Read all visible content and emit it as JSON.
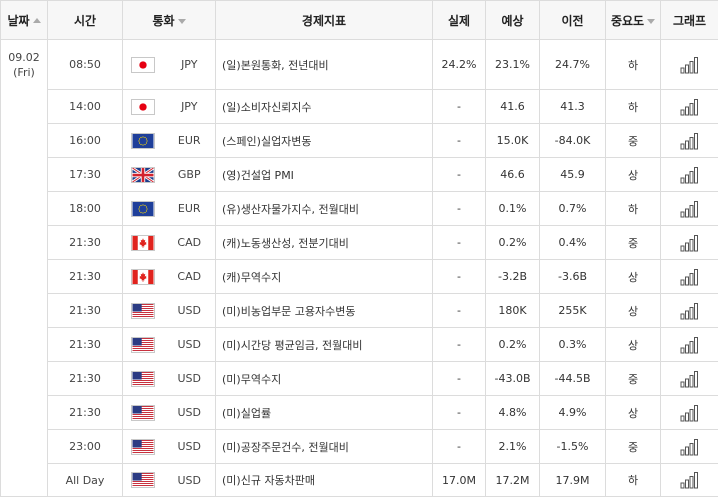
{
  "header": {
    "date": "날짜",
    "time": "시간",
    "currency": "통화",
    "indicator": "경제지표",
    "actual": "실제",
    "forecast": "예상",
    "previous": "이전",
    "importance": "중요도",
    "graph": "그래프"
  },
  "date_group": {
    "date": "09.02",
    "weekday": "(Fri)"
  },
  "rows": [
    {
      "time": "08:50",
      "flag": "jp",
      "currency": "JPY",
      "indicator": "(일)본원통화, 전년대비",
      "actual": "24.2%",
      "forecast": "23.1%",
      "previous": "24.7%",
      "importance": "하"
    },
    {
      "time": "14:00",
      "flag": "jp",
      "currency": "JPY",
      "indicator": "(일)소비자신뢰지수",
      "actual": "-",
      "forecast": "41.6",
      "previous": "41.3",
      "importance": "하"
    },
    {
      "time": "16:00",
      "flag": "eu",
      "currency": "EUR",
      "indicator": "(스페인)실업자변동",
      "actual": "-",
      "forecast": "15.0K",
      "previous": "-84.0K",
      "importance": "중"
    },
    {
      "time": "17:30",
      "flag": "gb",
      "currency": "GBP",
      "indicator": "(영)건설업 PMI",
      "actual": "-",
      "forecast": "46.6",
      "previous": "45.9",
      "importance": "상"
    },
    {
      "time": "18:00",
      "flag": "eu",
      "currency": "EUR",
      "indicator": "(유)생산자물가지수, 전월대비",
      "actual": "-",
      "forecast": "0.1%",
      "previous": "0.7%",
      "importance": "하"
    },
    {
      "time": "21:30",
      "flag": "ca",
      "currency": "CAD",
      "indicator": "(캐)노동생산성, 전분기대비",
      "actual": "-",
      "forecast": "0.2%",
      "previous": "0.4%",
      "importance": "중"
    },
    {
      "time": "21:30",
      "flag": "ca",
      "currency": "CAD",
      "indicator": "(캐)무역수지",
      "actual": "-",
      "forecast": "-3.2B",
      "previous": "-3.6B",
      "importance": "상"
    },
    {
      "time": "21:30",
      "flag": "us",
      "currency": "USD",
      "indicator": "(미)비농업부문 고용자수변동",
      "actual": "-",
      "forecast": "180K",
      "previous": "255K",
      "importance": "상"
    },
    {
      "time": "21:30",
      "flag": "us",
      "currency": "USD",
      "indicator": "(미)시간당 평균임금, 전월대비",
      "actual": "-",
      "forecast": "0.2%",
      "previous": "0.3%",
      "importance": "상"
    },
    {
      "time": "21:30",
      "flag": "us",
      "currency": "USD",
      "indicator": "(미)무역수지",
      "actual": "-",
      "forecast": "-43.0B",
      "previous": "-44.5B",
      "importance": "중"
    },
    {
      "time": "21:30",
      "flag": "us",
      "currency": "USD",
      "indicator": "(미)실업률",
      "actual": "-",
      "forecast": "4.8%",
      "previous": "4.9%",
      "importance": "상"
    },
    {
      "time": "23:00",
      "flag": "us",
      "currency": "USD",
      "indicator": "(미)공장주문건수, 전월대비",
      "actual": "-",
      "forecast": "2.1%",
      "previous": "-1.5%",
      "importance": "중"
    },
    {
      "time": "All Day",
      "flag": "us",
      "currency": "USD",
      "indicator": "(미)신규 자동차판매",
      "actual": "17.0M",
      "forecast": "17.2M",
      "previous": "17.9M",
      "importance": "하"
    }
  ],
  "icons": {
    "graph": "bar-chart-icon",
    "sort": "sort-up-icon",
    "dropdown": "sort-down-icon"
  },
  "colors": {
    "header_bg": "#f7f7f7",
    "border": "#dcdcdc",
    "graph_stroke": "#555555"
  }
}
